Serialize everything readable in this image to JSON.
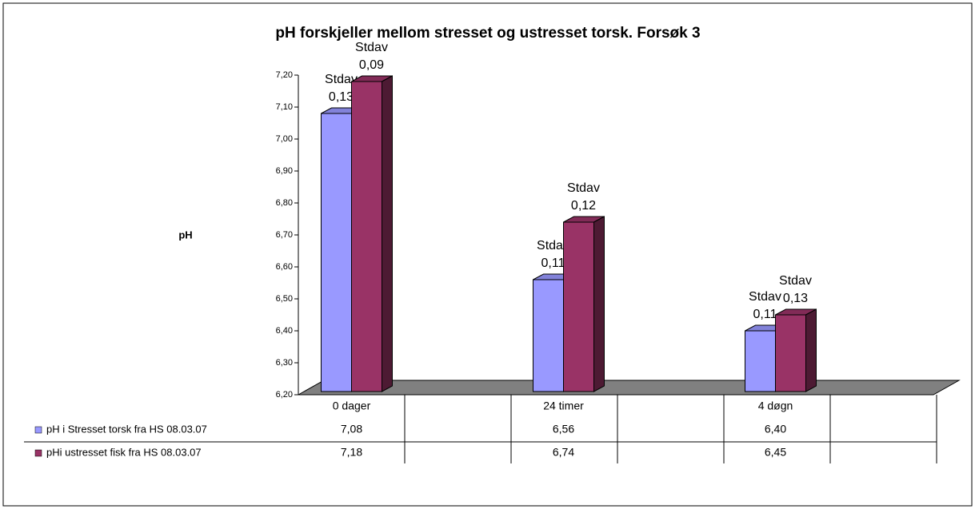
{
  "chart_data": {
    "type": "bar3d",
    "title": "pH forskjeller mellom stresset og ustresset torsk. Forsøk 3",
    "y_label": "pH",
    "categories": [
      "0 dager",
      "24 timer",
      "4 døgn"
    ],
    "stdav_title": "Stdav",
    "series": [
      {
        "name": "pH i Stresset torsk fra HS 08.03.07",
        "color": "#9999ff",
        "values": [
          7.08,
          6.56,
          6.4
        ],
        "value_labels": [
          "7,08",
          "6,56",
          "6,40"
        ],
        "stdav_labels": [
          "0,13",
          "0,11",
          "0,11"
        ]
      },
      {
        "name": "pHi ustresset fisk fra HS 08.03.07",
        "color": "#993366",
        "values": [
          7.18,
          6.74,
          6.45
        ],
        "value_labels": [
          "7,18",
          "6,74",
          "6,45"
        ],
        "stdav_labels": [
          "0,09",
          "0,12",
          "0,13"
        ]
      }
    ],
    "ylim": [
      6.2,
      7.2
    ],
    "yticks": [
      {
        "value": 6.2,
        "label": "6,20"
      },
      {
        "value": 6.3,
        "label": "6,30"
      },
      {
        "value": 6.4,
        "label": "6,40"
      },
      {
        "value": 6.5,
        "label": "6,50"
      },
      {
        "value": 6.6,
        "label": "6,60"
      },
      {
        "value": 6.7,
        "label": "6,70"
      },
      {
        "value": 6.8,
        "label": "6,80"
      },
      {
        "value": 6.9,
        "label": "6,90"
      },
      {
        "value": 7.0,
        "label": "7,00"
      },
      {
        "value": 7.1,
        "label": "7,10"
      },
      {
        "value": 7.2,
        "label": "7,20"
      }
    ],
    "grid": false
  }
}
